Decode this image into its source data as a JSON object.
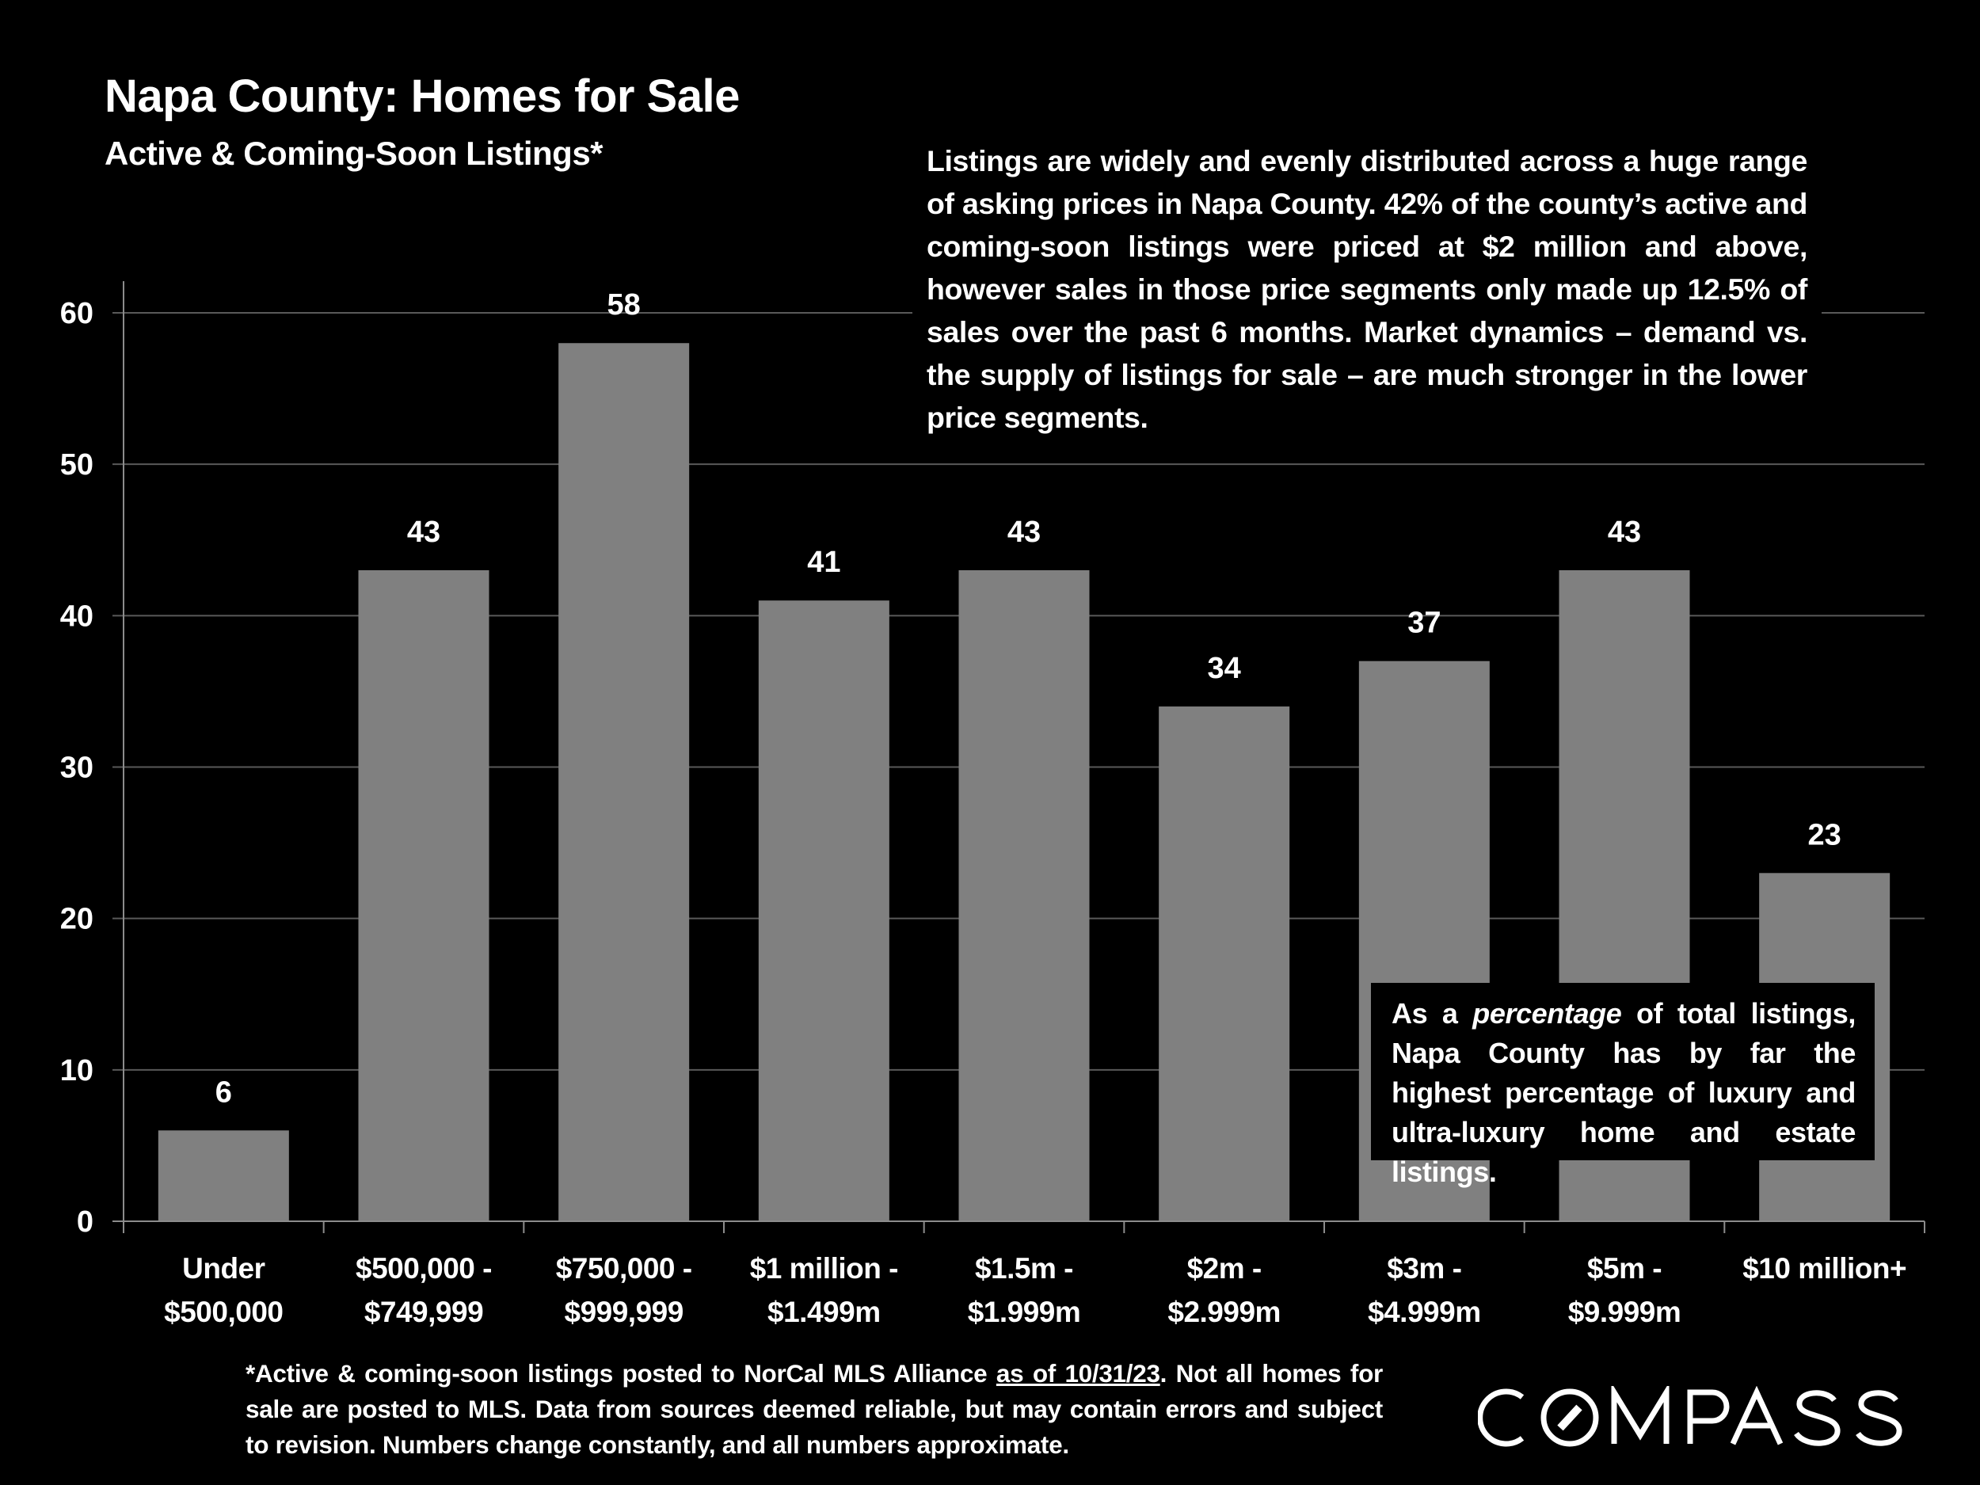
{
  "header": {
    "title": "Napa County: Homes for Sale",
    "subtitle": "Active & Coming-Soon Listings*"
  },
  "callout": {
    "text": "Listings are widely and evenly distributed across a huge range of asking prices in Napa County. 42% of the county’s active and coming-soon listings were priced at $2 million and above, however sales in those price segments only made up 12.5% of sales over the past 6 months. Market dynamics – demand vs. the supply of listings for sale – are much stronger in the lower price segments."
  },
  "note": {
    "prefix": "As a ",
    "emphasis": "percentage",
    "suffix": " of total listings, Napa County has by far the highest percentage of luxury and ultra-luxury home and estate listings."
  },
  "footnote": {
    "before": "*Active & coming-soon listings posted to NorCal MLS Alliance ",
    "underlined": "as of 10/31/23",
    "after": ". Not all homes for sale are posted to MLS. Data from sources deemed reliable, but may contain errors and subject to revision. Numbers change constantly, and all numbers approximate."
  },
  "logo": {
    "text": "COMPASS"
  },
  "colors": {
    "background": "#000000",
    "bar": "#808080",
    "text": "#ffffff",
    "gridline": "#595959",
    "axis": "#8c8c8c"
  },
  "chart_data": {
    "type": "bar",
    "title": "Napa County: Homes for Sale",
    "subtitle": "Active & Coming-Soon Listings*",
    "xlabel": "",
    "ylabel": "",
    "ylim": [
      0,
      60
    ],
    "yticks": [
      0,
      10,
      20,
      30,
      40,
      50,
      60
    ],
    "grid": true,
    "legend": "none",
    "categories": [
      [
        "Under",
        "$500,000"
      ],
      [
        "$500,000 -",
        "$749,999"
      ],
      [
        "$750,000 -",
        "$999,999"
      ],
      [
        "$1 million -",
        "$1.499m"
      ],
      [
        "$1.5m -",
        "$1.999m"
      ],
      [
        "$2m -",
        "$2.999m"
      ],
      [
        "$3m -",
        "$4.999m"
      ],
      [
        "$5m -",
        "$9.999m"
      ],
      [
        "$10 million+"
      ]
    ],
    "values": [
      6,
      43,
      58,
      41,
      43,
      34,
      37,
      43,
      23
    ]
  }
}
